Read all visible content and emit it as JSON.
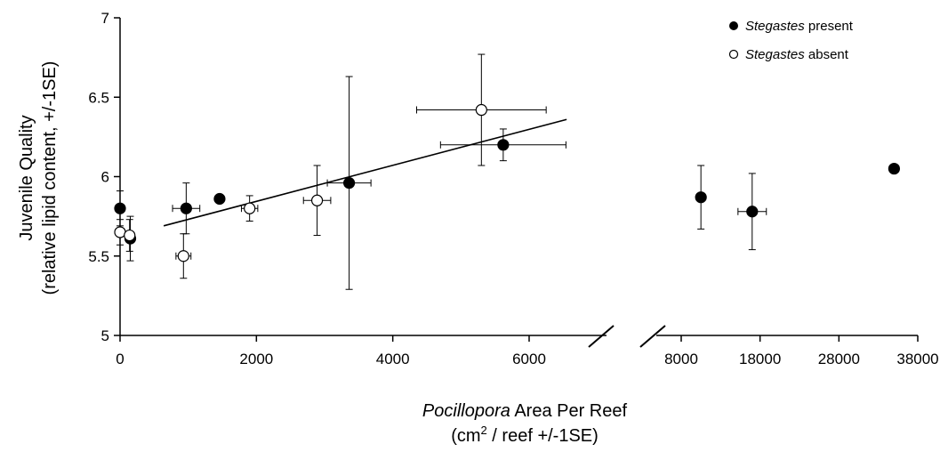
{
  "chart_data": {
    "type": "scatter",
    "title": "",
    "ylabel_line1": "Juvenile Quality",
    "ylabel_line2": "(relative lipid content, +/-1SE)",
    "xlabel_line1_italic": "Pocillopora",
    "xlabel_line1_rest": " Area Per Reef",
    "xlabel_line2_prefix": "(cm",
    "xlabel_line2_sup": "2",
    "xlabel_line2_suffix": " / reef +/-1SE)",
    "ylim": [
      5,
      7
    ],
    "y_ticks": [
      5,
      5.5,
      6,
      6.5,
      7
    ],
    "y_tick_labels": [
      "5",
      "5.5",
      "6",
      "6.5",
      "7"
    ],
    "x_left_segment": {
      "range": [
        0,
        7000
      ],
      "ticks": [
        0,
        2000,
        4000,
        6000
      ],
      "tick_labels": [
        "0",
        "2000",
        "4000",
        "6000"
      ]
    },
    "x_right_segment": {
      "range": [
        8000,
        38000
      ],
      "ticks": [
        8000,
        18000,
        28000,
        38000
      ],
      "tick_labels": [
        "8000",
        "18000",
        "28000",
        "38000"
      ]
    },
    "legend": {
      "position": "top-right",
      "entries": [
        {
          "marker": "filled",
          "italic": "Stegastes",
          "rest": " present"
        },
        {
          "marker": "open",
          "italic": "Stegastes",
          "rest": " absent"
        }
      ]
    },
    "series": [
      {
        "marker": "filled",
        "points": [
          {
            "x": 0,
            "y": 5.8,
            "ye": 0.11,
            "xe": 0
          },
          {
            "x": 150,
            "y": 5.61,
            "ye": 0.14,
            "xe": 0
          },
          {
            "x": 970,
            "y": 5.8,
            "ye": 0.16,
            "xe": 200
          },
          {
            "x": 1460,
            "y": 5.86,
            "ye": 0,
            "xe": 0
          },
          {
            "x": 3360,
            "y": 5.96,
            "ye": 0.67,
            "xe": 320
          },
          {
            "x": 5620,
            "y": 6.2,
            "ye": 0.1,
            "xe": 920
          },
          {
            "x": 10500,
            "y": 5.87,
            "ye": 0.2,
            "xe": 0
          },
          {
            "x": 17000,
            "y": 5.78,
            "ye": 0.24,
            "xe": 1800
          },
          {
            "x": 35000,
            "y": 6.05,
            "ye": 0,
            "xe": 0
          }
        ]
      },
      {
        "marker": "open",
        "points": [
          {
            "x": 0,
            "y": 5.65,
            "ye": 0.08,
            "xe": 0
          },
          {
            "x": 140,
            "y": 5.63,
            "ye": 0.1,
            "xe": 0
          },
          {
            "x": 930,
            "y": 5.5,
            "ye": 0.14,
            "xe": 110
          },
          {
            "x": 1900,
            "y": 5.8,
            "ye": 0.08,
            "xe": 120
          },
          {
            "x": 2890,
            "y": 5.85,
            "ye": 0.22,
            "xe": 200
          },
          {
            "x": 5300,
            "y": 6.42,
            "ye": 0.35,
            "xe": 950
          }
        ]
      }
    ],
    "trendline": {
      "x": [
        640,
        6550
      ],
      "y": [
        5.69,
        6.36
      ]
    }
  }
}
